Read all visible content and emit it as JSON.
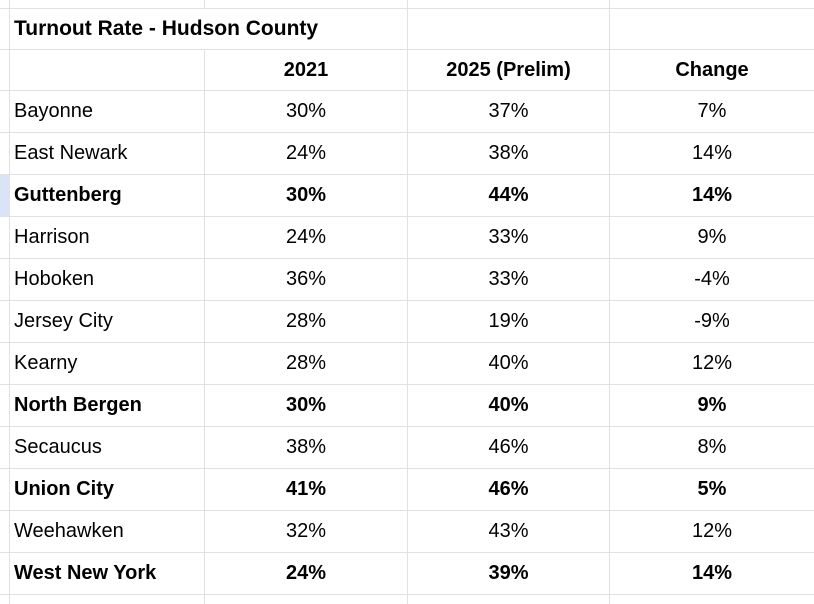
{
  "table": {
    "title": "Turnout Rate - Hudson County",
    "columns": {
      "municipality": "",
      "y2021": "2021",
      "y2025": "2025 (Prelim)",
      "change": "Change"
    },
    "rows": [
      {
        "name": "Bayonne",
        "y2021": "30%",
        "y2025": "37%",
        "change": "7%"
      },
      {
        "name": "East Newark",
        "y2021": "24%",
        "y2025": "38%",
        "change": "14%"
      },
      {
        "name": "Guttenberg",
        "y2021": "30%",
        "y2025": "44%",
        "change": "14%"
      },
      {
        "name": "Harrison",
        "y2021": "24%",
        "y2025": "33%",
        "change": "9%"
      },
      {
        "name": "Hoboken",
        "y2021": "36%",
        "y2025": "33%",
        "change": "-4%"
      },
      {
        "name": "Jersey City",
        "y2021": "28%",
        "y2025": "19%",
        "change": "-9%"
      },
      {
        "name": "Kearny",
        "y2021": "28%",
        "y2025": "40%",
        "change": "12%"
      },
      {
        "name": "North Bergen",
        "y2021": "30%",
        "y2025": "40%",
        "change": "9%"
      },
      {
        "name": "Secaucus",
        "y2021": "38%",
        "y2025": "46%",
        "change": "8%"
      },
      {
        "name": "Union City",
        "y2021": "41%",
        "y2025": "46%",
        "change": "5%"
      },
      {
        "name": "Weehawken",
        "y2021": "32%",
        "y2025": "43%",
        "change": "12%"
      },
      {
        "name": "West New York",
        "y2021": "24%",
        "y2025": "39%",
        "change": "14%"
      }
    ],
    "bold_rows": [
      "Guttenberg",
      "North Bergen",
      "Union City",
      "West New York"
    ],
    "state": {
      "highlighted_row": "Guttenberg"
    },
    "colors": {
      "gridline": "#e1e1e1",
      "row_highlight_sliver": "#dbe4f6",
      "text": "#000000",
      "background": "#ffffff"
    }
  }
}
